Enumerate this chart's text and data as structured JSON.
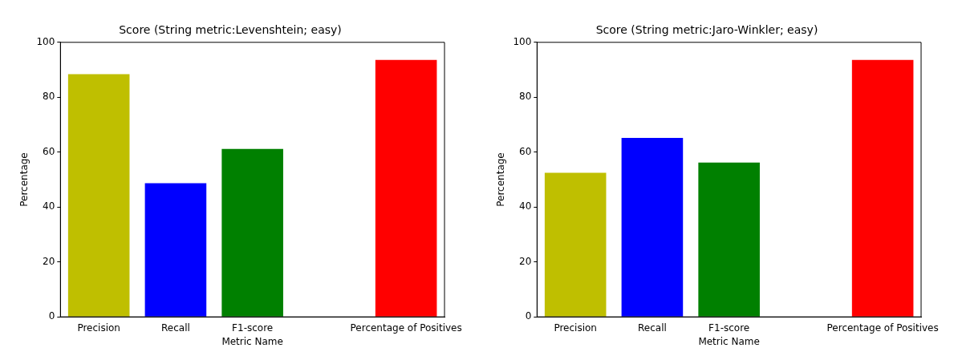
{
  "chart_data": [
    {
      "type": "bar",
      "title": "Score (String metric:Levenshtein; easy)",
      "xlabel": "Metric Name",
      "ylabel": "Percentage",
      "categories": [
        "Precision",
        "Recall",
        "F1-score",
        null,
        "Percentage of Positives"
      ],
      "values": [
        88.4,
        48.7,
        61.2,
        null,
        93.6
      ],
      "colors": [
        "#bfbf00",
        "#0000ff",
        "#008000",
        "#ff0000",
        "#ff0000"
      ],
      "ylim": [
        0,
        100
      ],
      "yticks": [
        0,
        20,
        40,
        60,
        80,
        100
      ],
      "grid": false,
      "legend": false
    },
    {
      "type": "bar",
      "title": "Score (String metric:Jaro-Winkler; easy)",
      "xlabel": "Metric Name",
      "ylabel": "Percentage",
      "categories": [
        "Precision",
        "Recall",
        "F1-score",
        null,
        "Percentage of Positives"
      ],
      "values": [
        52.5,
        65.2,
        56.2,
        null,
        93.6
      ],
      "colors": [
        "#bfbf00",
        "#0000ff",
        "#008000",
        "#ff0000",
        "#ff0000"
      ],
      "ylim": [
        0,
        100
      ],
      "yticks": [
        0,
        20,
        40,
        60,
        80,
        100
      ],
      "grid": false,
      "legend": false
    }
  ]
}
